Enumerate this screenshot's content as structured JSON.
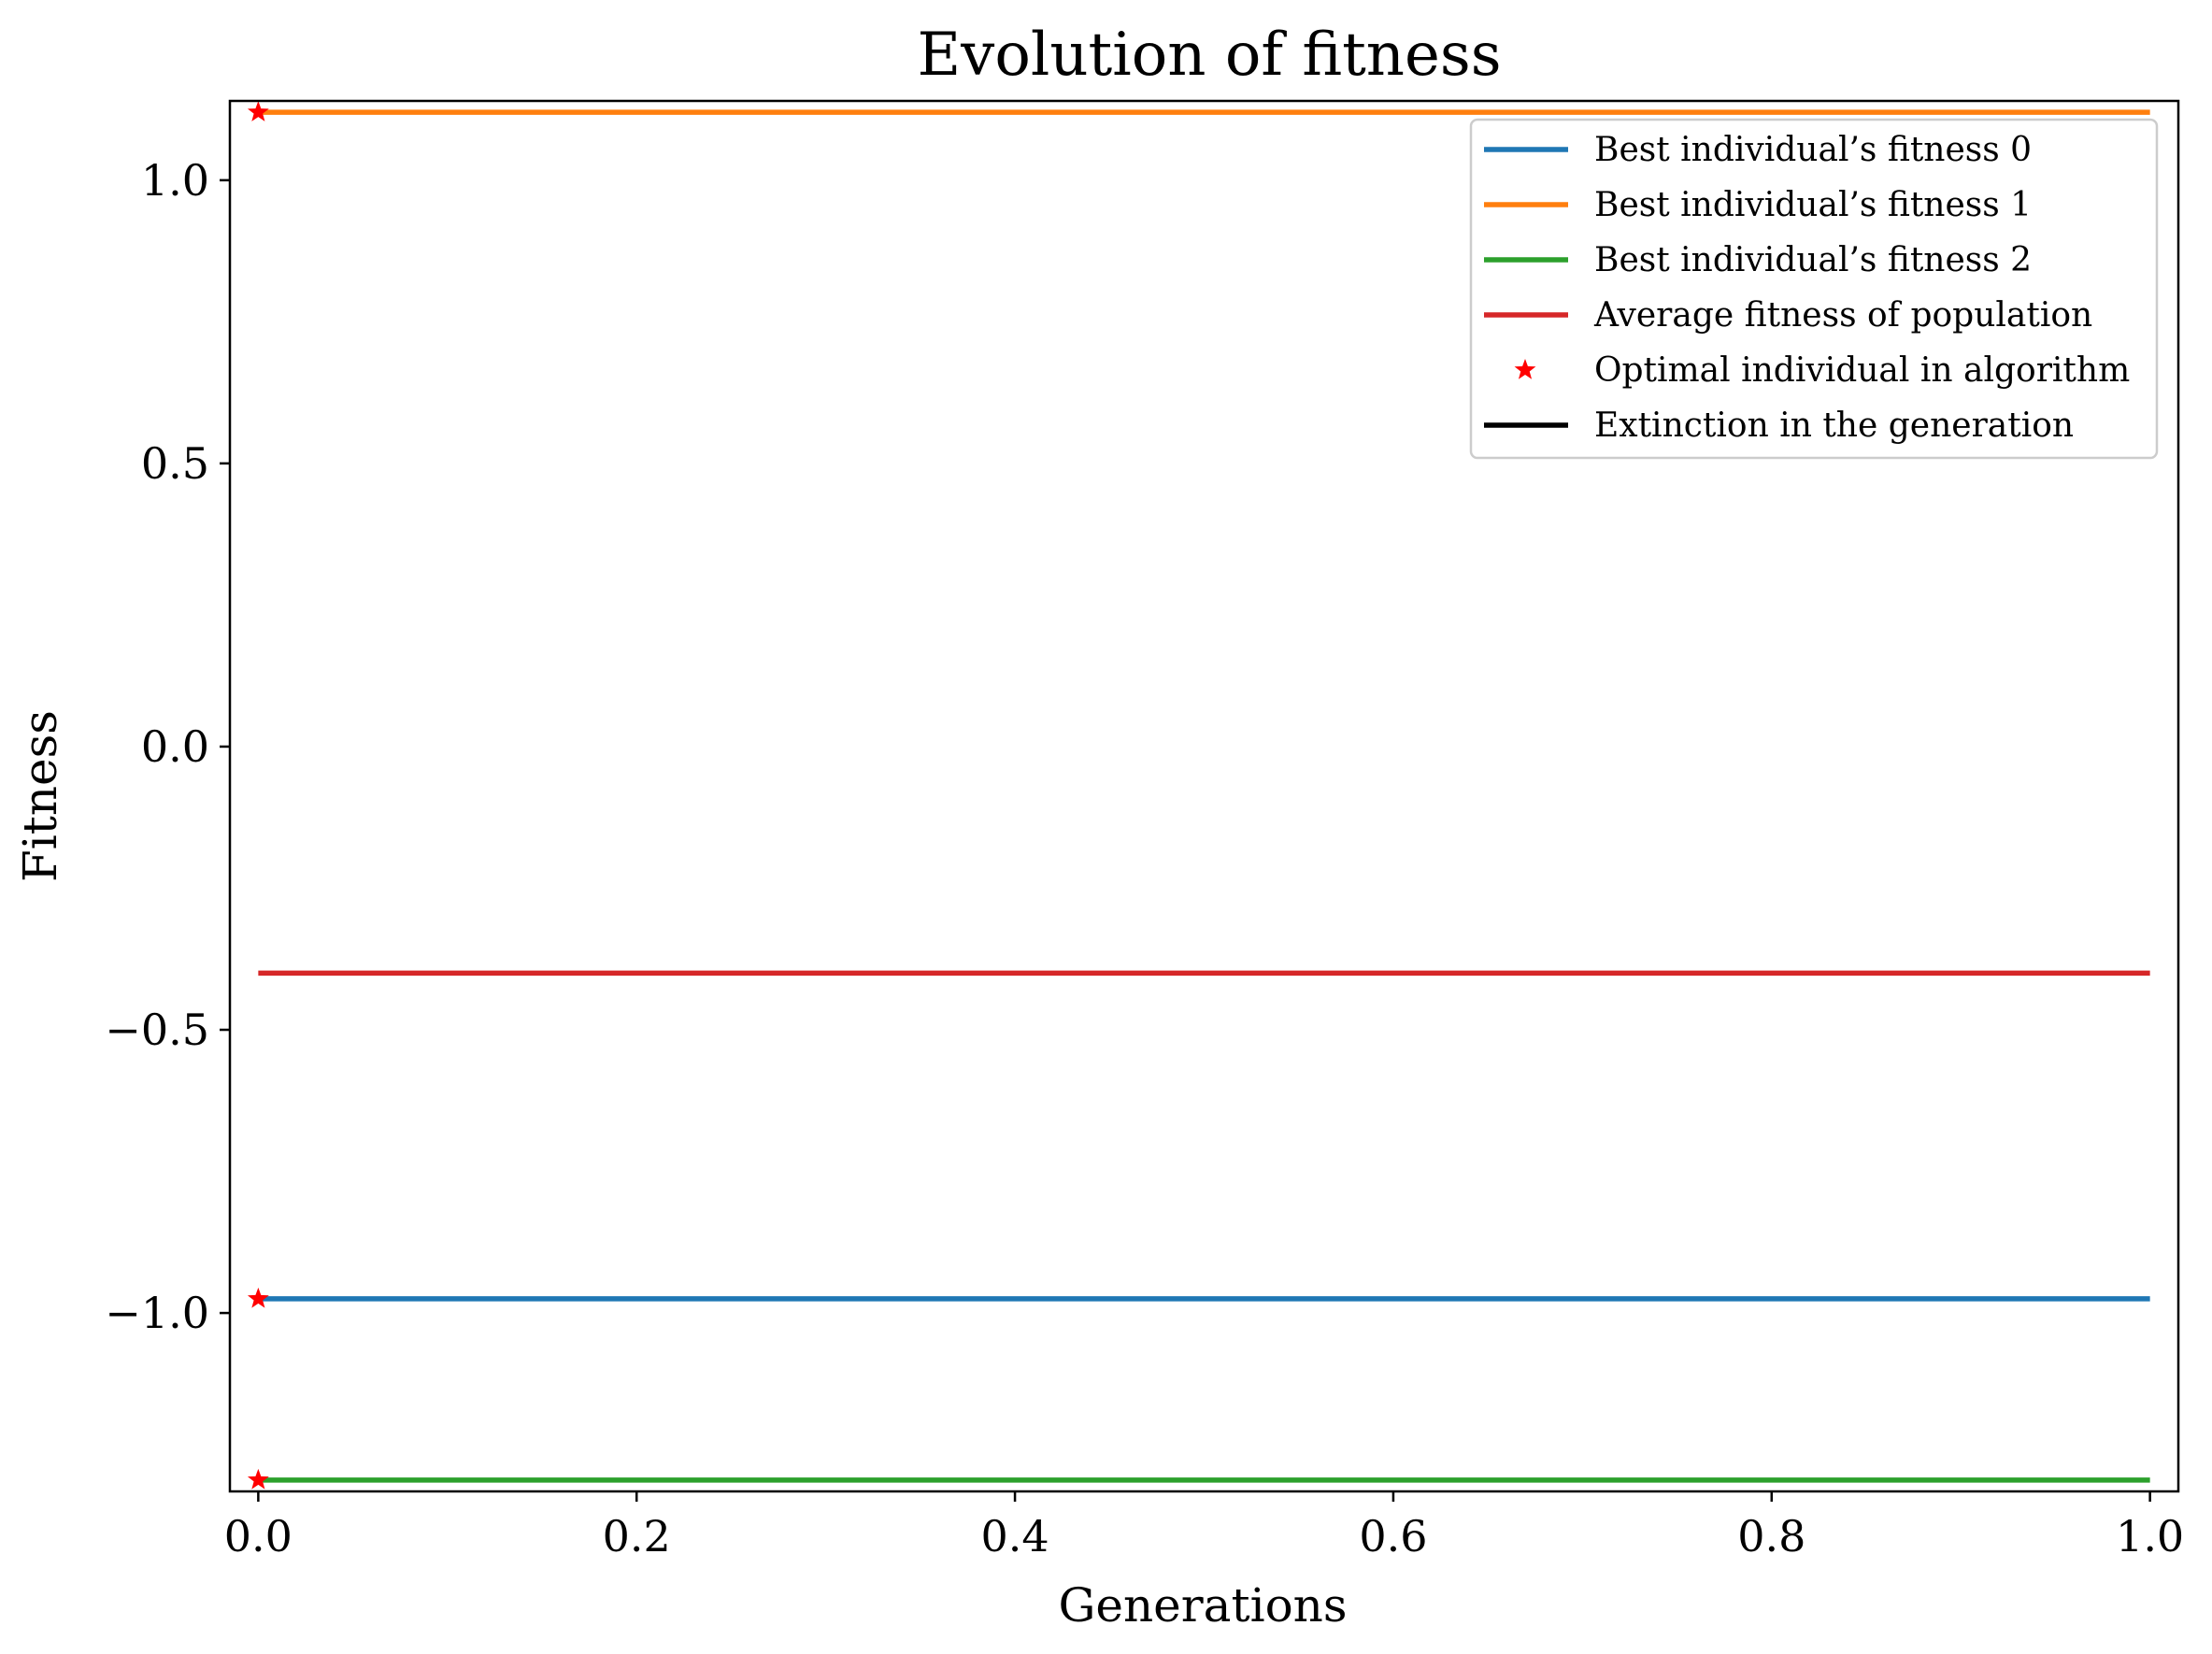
{
  "chart_data": {
    "type": "line",
    "title": "Evolution of fitness",
    "xlabel": "Generations",
    "ylabel": "Fitness",
    "xlim": [
      -0.015,
      1.015
    ],
    "ylim": [
      -1.315,
      1.14
    ],
    "xticks": [
      {
        "value": 0.0,
        "label": "0.0"
      },
      {
        "value": 0.2,
        "label": "0.2"
      },
      {
        "value": 0.4,
        "label": "0.4"
      },
      {
        "value": 0.6,
        "label": "0.6"
      },
      {
        "value": 0.8,
        "label": "0.8"
      },
      {
        "value": 1.0,
        "label": "1.0"
      }
    ],
    "yticks": [
      {
        "value": 1.0,
        "label": "1.0"
      },
      {
        "value": 0.5,
        "label": "0.5"
      },
      {
        "value": 0.0,
        "label": "0.0"
      },
      {
        "value": -0.5,
        "label": "−0.5"
      },
      {
        "value": -1.0,
        "label": "−1.0"
      }
    ],
    "grid": false,
    "legend_position": "top-right",
    "series": [
      {
        "name": "Best individual’s fitness 0",
        "color": "#1f77b4",
        "style": "line",
        "x": [
          0,
          1
        ],
        "y": [
          -0.975,
          -0.975
        ]
      },
      {
        "name": "Best individual’s fitness 1",
        "color": "#ff7f0e",
        "style": "line",
        "x": [
          0,
          1
        ],
        "y": [
          1.12,
          1.12
        ]
      },
      {
        "name": "Best individual’s fitness 2",
        "color": "#2ca02c",
        "style": "line",
        "x": [
          0,
          1
        ],
        "y": [
          -1.295,
          -1.295
        ]
      },
      {
        "name": "Average fitness of population",
        "color": "#d62728",
        "style": "line",
        "x": [
          0,
          1
        ],
        "y": [
          -0.4,
          -0.4
        ]
      },
      {
        "name": "Optimal individual in algorithm",
        "color": "#ff0000",
        "style": "marker",
        "x": [
          0,
          0,
          0
        ],
        "y": [
          1.12,
          -0.975,
          -1.295
        ]
      },
      {
        "name": "Extinction in the generation",
        "color": "#000000",
        "style": "line",
        "x": [],
        "y": []
      }
    ]
  }
}
